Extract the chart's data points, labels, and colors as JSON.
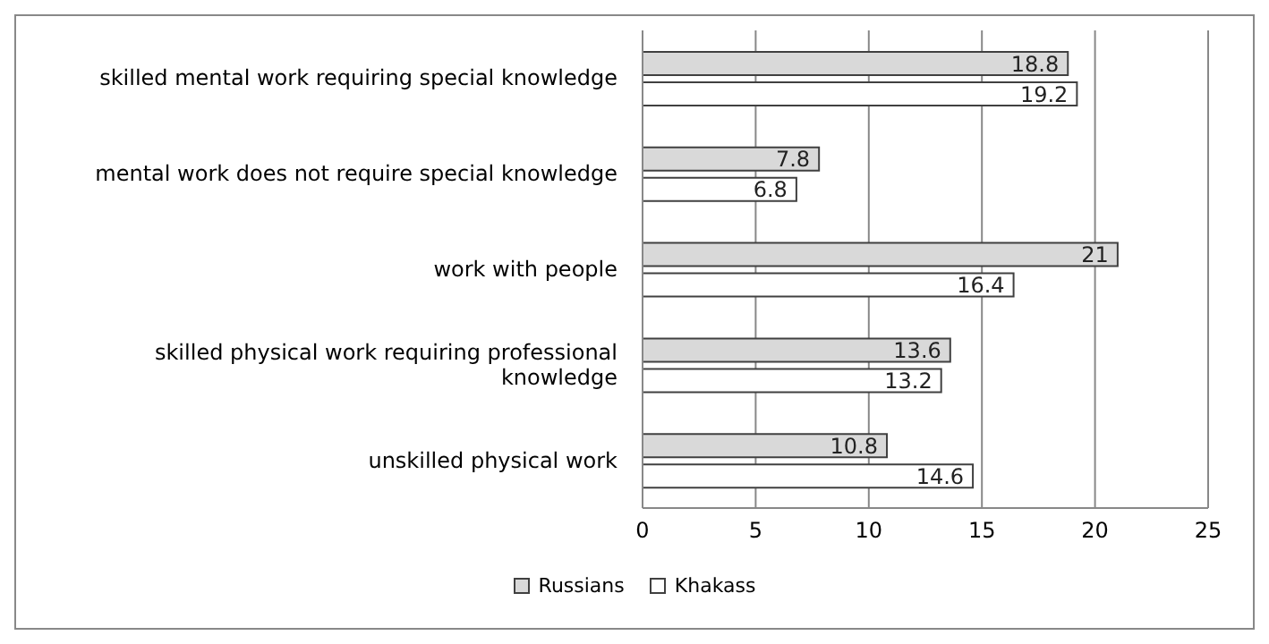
{
  "chart_data": {
    "type": "bar",
    "orientation": "horizontal",
    "categories": [
      "skilled mental work requiring special knowledge",
      "mental work does not require special knowledge",
      "work with people",
      "skilled physical work requiring professional knowledge",
      "unskilled physical work"
    ],
    "series": [
      {
        "name": "Russians",
        "color": "#d9d9d9",
        "values": [
          18.8,
          7.8,
          21,
          13.6,
          10.8
        ]
      },
      {
        "name": "Khakass",
        "color": "#ffffff",
        "values": [
          19.2,
          6.8,
          16.4,
          13.2,
          14.6
        ]
      }
    ],
    "xlim": [
      0,
      25
    ],
    "xticks": [
      0,
      5,
      10,
      15,
      20,
      25
    ],
    "grid": "x",
    "legend": "bottom",
    "data_labels": true
  }
}
